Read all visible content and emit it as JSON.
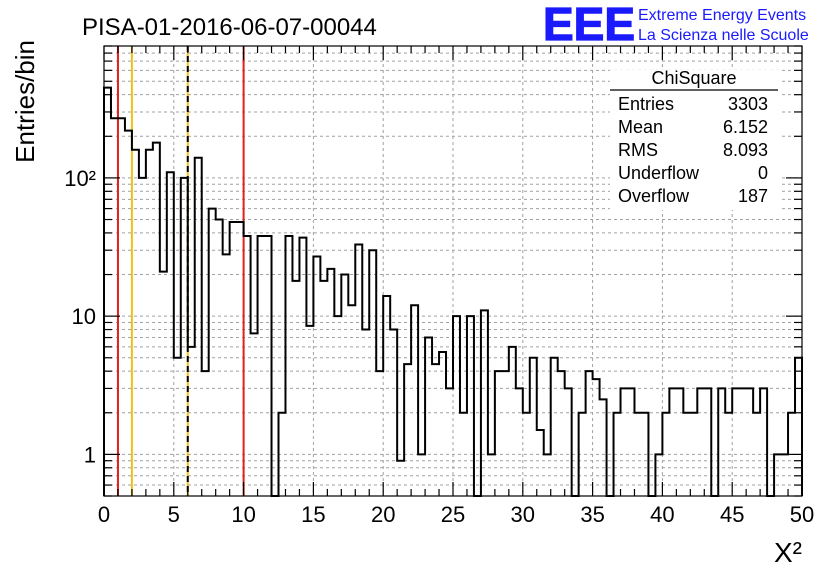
{
  "title": "PISA-01-2016-06-07-00044",
  "logo": {
    "letters": "EEE",
    "line1": "Extreme Energy Events",
    "line2": "La Scienza nelle Scuole",
    "color": "#1a1aff"
  },
  "colors": {
    "red_lines": "#e0201b",
    "yellow_lines": "#f0c018",
    "histogram": "#000000",
    "grid": "#a0a0a0"
  },
  "stats": {
    "title": "ChiSquare",
    "rows": [
      {
        "label": "Entries",
        "value": "3303"
      },
      {
        "label": "Mean",
        "value": "6.152"
      },
      {
        "label": "RMS",
        "value": "8.093"
      },
      {
        "label": "Underflow",
        "value": "0"
      },
      {
        "label": "Overflow",
        "value": "187"
      }
    ]
  },
  "chart_data": {
    "type": "bar",
    "style": "step-histogram",
    "title": "PISA-01-2016-06-07-00044",
    "xlabel": "X²",
    "ylabel": "Entries/bin",
    "xlim": [
      0,
      50
    ],
    "ylim": [
      0.5,
      900
    ],
    "y_scale": "log",
    "grid": true,
    "bin_width": 0.5,
    "bin_values": [
      450,
      270,
      270,
      220,
      160,
      100,
      160,
      180,
      21,
      110,
      5,
      100,
      6,
      140,
      4,
      60,
      50,
      28,
      48,
      48,
      38,
      7.5,
      38,
      38,
      0.5,
      2,
      38,
      18,
      37,
      8.5,
      27,
      18,
      22,
      10,
      20,
      12,
      33,
      8,
      30,
      4,
      14,
      8,
      0.9,
      4.5,
      12,
      1,
      7,
      4.5,
      5.5,
      3,
      10,
      2,
      10,
      0.5,
      11,
      1,
      4,
      4,
      6,
      3,
      2,
      5,
      1.5,
      1,
      5,
      4,
      3,
      0.5,
      2,
      4,
      3.5,
      2.5,
      0.5,
      2,
      3,
      3,
      2,
      2,
      0.5,
      1,
      2,
      3,
      3,
      2,
      2,
      3,
      3,
      0.5,
      3,
      2,
      3,
      3,
      3,
      2,
      3,
      0.5,
      1,
      1,
      2,
      5
    ],
    "x_ticks": [
      0,
      5,
      10,
      15,
      20,
      25,
      30,
      35,
      40,
      45,
      50
    ],
    "x_tick_labels": [
      "0",
      "5",
      "10",
      "15",
      "20",
      "25",
      "30",
      "35",
      "40",
      "45",
      "50"
    ],
    "y_major_ticks": [
      1,
      10,
      100
    ],
    "y_major_labels": [
      "1",
      "10",
      "10²"
    ],
    "vertical_lines": [
      {
        "x": 1,
        "color": "red",
        "style": "solid"
      },
      {
        "x": 2,
        "color": "yellow",
        "style": "solid"
      },
      {
        "x": 6,
        "color": "yellow",
        "style": "solid"
      },
      {
        "x": 6,
        "color": "black",
        "style": "dashed"
      },
      {
        "x": 10,
        "color": "red",
        "style": "solid"
      }
    ]
  }
}
